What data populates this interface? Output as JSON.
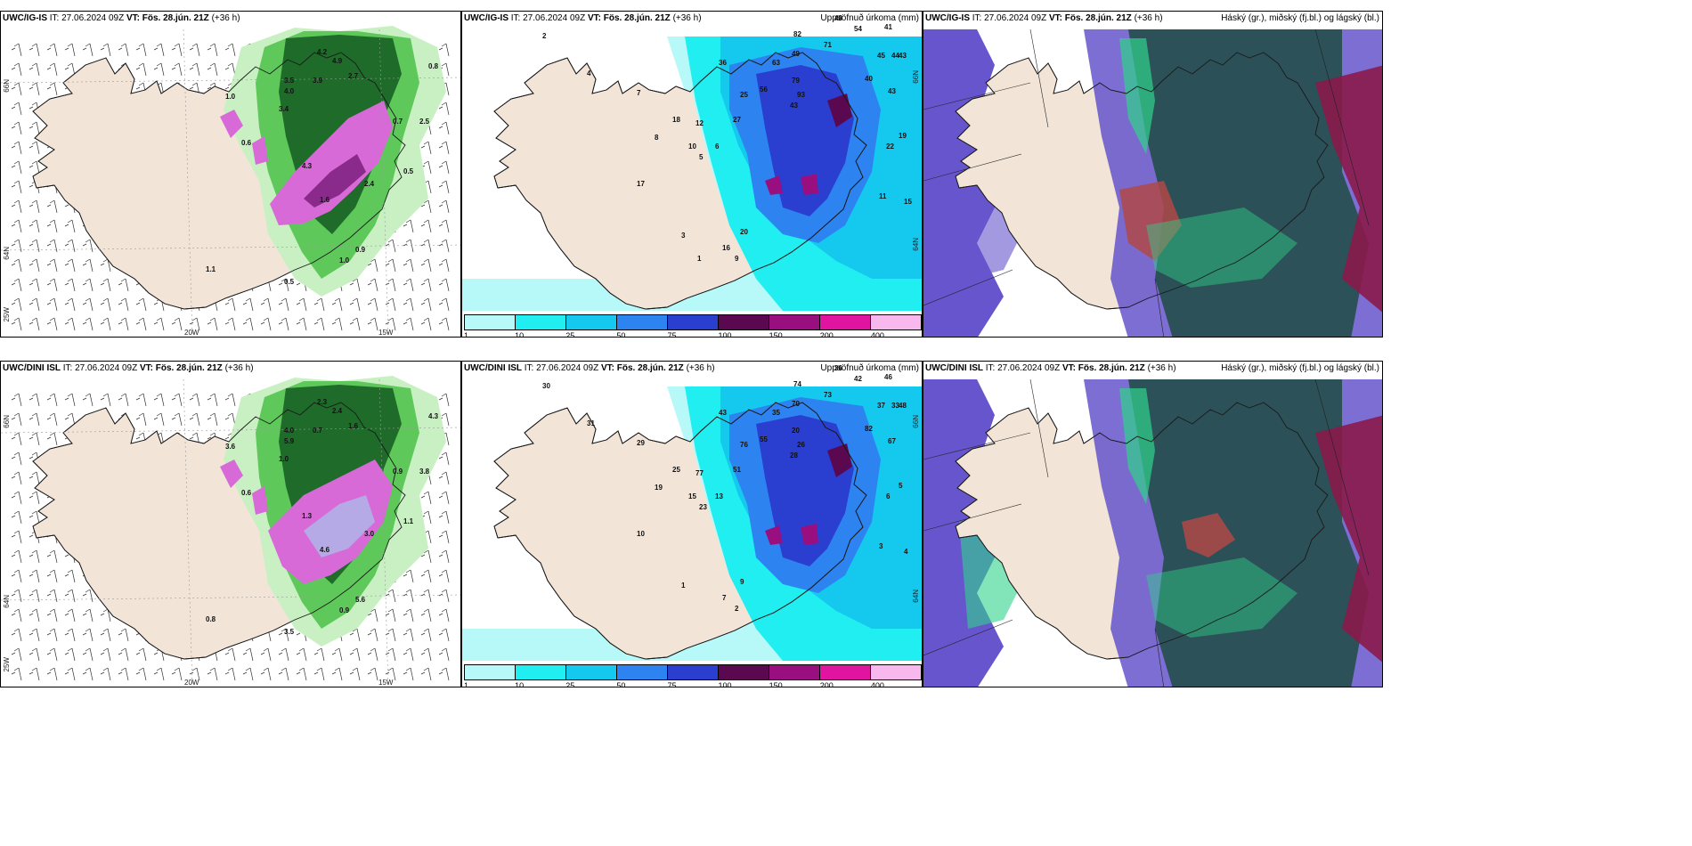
{
  "colors": {
    "land": "#f2e5d8",
    "coast": "#1a1a1a",
    "green_light": "#c9f0c3",
    "green_mid": "#5fc85a",
    "green_dark": "#1e6b2a",
    "magenta": "#d86ad8",
    "magenta_dark": "#8a2a8a",
    "lavender": "#b5a9e6",
    "cyan_pale": "#b7f8f8",
    "cyan": "#21eef0",
    "sky": "#15c8ee",
    "blue": "#2d84f0",
    "blue_dark": "#2a3fd0",
    "purple_dark": "#5a0850",
    "purple": "#990f80",
    "cloud_white": "#ffffff",
    "cloud_high": "#234e4a",
    "cloud_mid": "#6655cc",
    "cloud_low": "#8a1a4a",
    "cloud_teal": "#2fd38a",
    "cloud_red": "#b04848"
  },
  "rows": [
    {
      "model": "UWC/IG-IS",
      "panels": [
        {
          "model": "UWC/IG-IS",
          "it_label": "IT: 27.06.2024 09Z",
          "vt_label": "VT: Fös. 28.jún. 21Z",
          "lead": "(+36 h)",
          "right_title": ""
        },
        {
          "model": "UWC/IG-IS",
          "it_label": "IT: 27.06.2024 09Z",
          "vt_label": "VT: Fös. 28.jún. 21Z",
          "lead": "(+36 h)",
          "right_title": "Uppsöfnuð úrkoma (mm)"
        },
        {
          "model": "UWC/IG-IS",
          "it_label": "IT: 27.06.2024 09Z",
          "vt_label": "VT: Fös. 28.jún. 21Z",
          "lead": "(+36 h)",
          "right_title": "Háský (gr.), miðský (fj.bl.) og lágský (bl.)"
        }
      ],
      "wind_values": [
        "4.2",
        "4.9",
        "3.5",
        "4.0",
        "3.9",
        "2.7",
        "1.0",
        "0.8",
        "3.4",
        "0.7",
        "2.5",
        "0.6",
        "4.3",
        "1.6",
        "2.4",
        "0.5",
        "1.1",
        "0.9",
        "1.0",
        "0.5"
      ],
      "precip_values": [
        "48",
        "54",
        "41",
        "45",
        "43",
        "44",
        "82",
        "71",
        "49",
        "40",
        "43",
        "36",
        "56",
        "63",
        "79",
        "93",
        "43",
        "25",
        "27",
        "12",
        "18",
        "10",
        "6",
        "5",
        "2",
        "4",
        "7",
        "8",
        "17",
        "20",
        "16",
        "22",
        "19",
        "15",
        "11",
        "9",
        "3",
        "1"
      ]
    },
    {
      "model": "UWC/DINI ISL",
      "panels": [
        {
          "model": "UWC/DINI ISL",
          "it_label": "IT: 27.06.2024 09Z",
          "vt_label": "VT: Fös. 28.jún. 21Z",
          "lead": "(+36 h)",
          "right_title": ""
        },
        {
          "model": "UWC/DINI ISL",
          "it_label": "IT: 27.06.2024 09Z",
          "vt_label": "VT: Fös. 28.jún. 21Z",
          "lead": "(+36 h)",
          "right_title": "Uppsöfnuð úrkoma (mm)"
        },
        {
          "model": "UWC/DINI ISL",
          "it_label": "IT: 27.06.2024 09Z",
          "vt_label": "VT: Fös. 28.jún. 21Z",
          "lead": "(+36 h)",
          "right_title": "Háský (gr.), miðský (fj.bl.) og lágský (bl.)"
        }
      ],
      "wind_values": [
        "2.3",
        "2.4",
        "4.0",
        "5.9",
        "0.7",
        "1.6",
        "3.6",
        "4.3",
        "1.0",
        "0.9",
        "3.8",
        "0.6",
        "1.3",
        "4.6",
        "3.0",
        "3.5",
        "0.8",
        "5.6",
        "0.9",
        "1.1"
      ],
      "precip_values": [
        "36",
        "42",
        "46",
        "37",
        "48",
        "33",
        "74",
        "73",
        "70",
        "82",
        "67",
        "43",
        "55",
        "35",
        "20",
        "26",
        "28",
        "76",
        "51",
        "77",
        "25",
        "15",
        "13",
        "23",
        "30",
        "31",
        "29",
        "19",
        "10",
        "9",
        "7",
        "6",
        "5",
        "4",
        "3",
        "2",
        "1"
      ]
    }
  ],
  "precip_legend": {
    "ticks": [
      "1",
      "10",
      "25",
      "50",
      "75",
      "100",
      "150",
      "200",
      "400"
    ],
    "colors": [
      "#b7f8f8",
      "#21eef0",
      "#15c8ee",
      "#2d84f0",
      "#2a3fd0",
      "#5a0850",
      "#990f80",
      "#e0149e",
      "#f8b8ee"
    ]
  },
  "wind_axis_labels": {
    "lat_66": "66N",
    "lat_64": "64N",
    "lon_25": "25W",
    "lon_20": "20W",
    "lon_15": "15W"
  },
  "precip_axis_labels": {
    "lat_66": "66N",
    "lat_64": "64N"
  }
}
